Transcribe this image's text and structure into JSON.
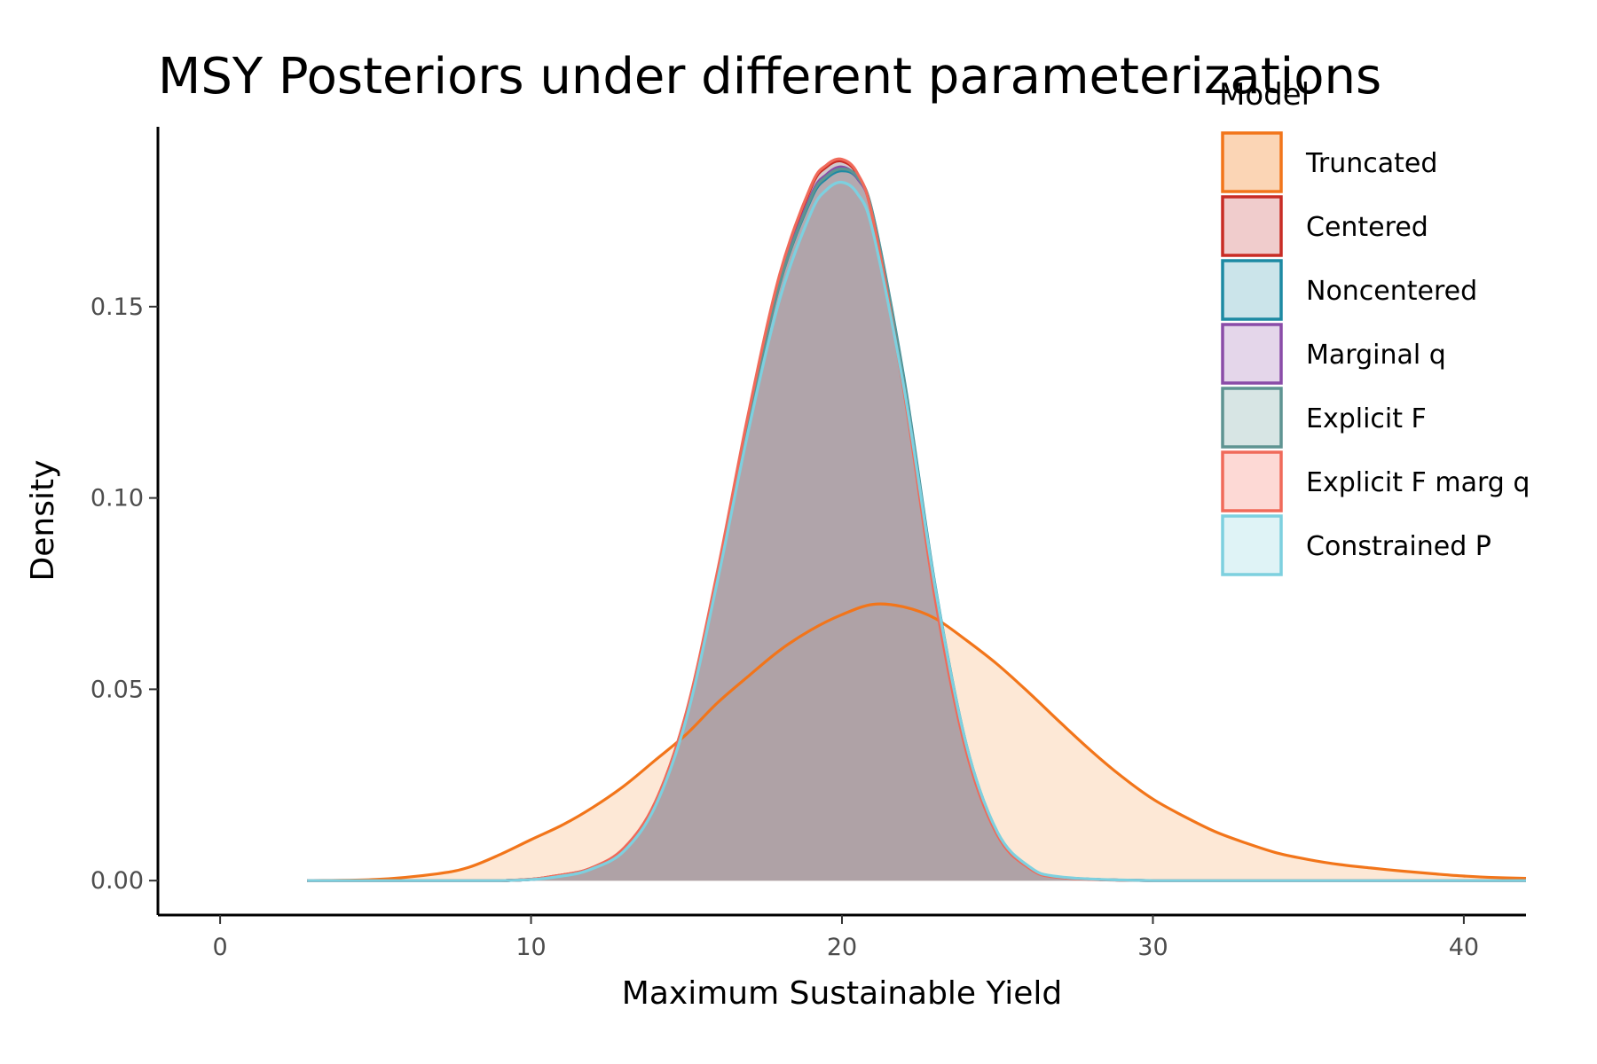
{
  "chart_data": {
    "type": "area",
    "title": "MSY Posteriors under different parameterizations",
    "xlabel": "Maximum Sustainable Yield",
    "ylabel": "Density",
    "xlim": [
      -2,
      42
    ],
    "ylim": [
      -0.009,
      0.197
    ],
    "x_ticks": [
      0,
      10,
      20,
      30,
      40
    ],
    "x_tick_labels": [
      "0",
      "10",
      "20",
      "30",
      "40"
    ],
    "y_ticks": [
      0.0,
      0.05,
      0.1,
      0.15
    ],
    "y_tick_labels": [
      "0.00",
      "0.05",
      "0.10",
      "0.15"
    ],
    "grid": false,
    "legend": {
      "title": "Model",
      "position": "top-right"
    },
    "series": [
      {
        "name": "Truncated",
        "line_color": "#f2751a",
        "fill_color": "#fbd5b5",
        "x": [
          2.8,
          5,
          7,
          8,
          9,
          10,
          11,
          12,
          13,
          14,
          15,
          16,
          17,
          18,
          19,
          20,
          21,
          22,
          23,
          24,
          25,
          26,
          27,
          28,
          29,
          30,
          31,
          32,
          33,
          34,
          35,
          36,
          37,
          38,
          39,
          40,
          41,
          42
        ],
        "y": [
          0.0,
          0.0003,
          0.0018,
          0.0035,
          0.0068,
          0.0107,
          0.0145,
          0.0192,
          0.0248,
          0.0315,
          0.0383,
          0.0465,
          0.0535,
          0.0602,
          0.0655,
          0.0695,
          0.0722,
          0.0715,
          0.0685,
          0.0628,
          0.0565,
          0.0492,
          0.0415,
          0.034,
          0.0272,
          0.0213,
          0.0168,
          0.0128,
          0.0098,
          0.0072,
          0.0055,
          0.0042,
          0.0033,
          0.0025,
          0.0018,
          0.0012,
          0.0008,
          0.0006
        ]
      },
      {
        "name": "Centered",
        "line_color": "#c82c25",
        "fill_color": "#f0cccc",
        "x": [
          2.8,
          9,
          11,
          12,
          13,
          14,
          15,
          16,
          17,
          18,
          19,
          19.5,
          20,
          20.5,
          21,
          22,
          23,
          24,
          25,
          26,
          27,
          30,
          35,
          42
        ],
        "y": [
          0.0,
          0.0,
          0.0015,
          0.0035,
          0.0085,
          0.0205,
          0.044,
          0.0805,
          0.122,
          0.158,
          0.181,
          0.1865,
          0.188,
          0.1845,
          0.173,
          0.128,
          0.074,
          0.034,
          0.012,
          0.0035,
          0.0009,
          0.0,
          0.0,
          0.0
        ]
      },
      {
        "name": "Noncentered",
        "line_color": "#1d8aa3",
        "fill_color": "#cbe4ea",
        "x": [
          2.8,
          9,
          11,
          12,
          13,
          14,
          15,
          16,
          17,
          18,
          19,
          19.5,
          20,
          20.5,
          21,
          22,
          23,
          24,
          25,
          26,
          27,
          30,
          35,
          42
        ],
        "y": [
          0.0,
          0.0,
          0.0014,
          0.0034,
          0.0082,
          0.0198,
          0.0428,
          0.0795,
          0.12,
          0.156,
          0.178,
          0.1835,
          0.1855,
          0.1835,
          0.174,
          0.131,
          0.077,
          0.0355,
          0.0126,
          0.0037,
          0.0009,
          0.0,
          0.0,
          0.0
        ]
      },
      {
        "name": "Marginal q",
        "line_color": "#8a4ca8",
        "fill_color": "#e4d6ea",
        "x": [
          2.8,
          9,
          11,
          12,
          13,
          14,
          15,
          16,
          17,
          18,
          19,
          19.5,
          20,
          20.5,
          21,
          22,
          23,
          24,
          25,
          26,
          27,
          30,
          35,
          42
        ],
        "y": [
          0.0,
          0.0,
          0.0014,
          0.0034,
          0.0083,
          0.02,
          0.0432,
          0.0798,
          0.1205,
          0.1565,
          0.179,
          0.1845,
          0.1865,
          0.1835,
          0.1735,
          0.13,
          0.0762,
          0.035,
          0.0123,
          0.0036,
          0.0009,
          0.0,
          0.0,
          0.0
        ]
      },
      {
        "name": "Explicit F",
        "line_color": "#5e9492",
        "fill_color": "#d7e5e4",
        "x": [
          2.8,
          9,
          11,
          12,
          13,
          14,
          15,
          16,
          17,
          18,
          19,
          19.5,
          20,
          20.5,
          21,
          22,
          23,
          24,
          25,
          26,
          27,
          30,
          35,
          42
        ],
        "y": [
          0.0,
          0.0,
          0.0014,
          0.0034,
          0.0082,
          0.0199,
          0.043,
          0.0796,
          0.1202,
          0.1562,
          0.1785,
          0.184,
          0.186,
          0.1838,
          0.1738,
          0.1305,
          0.0765,
          0.0352,
          0.0124,
          0.0036,
          0.0009,
          0.0,
          0.0,
          0.0
        ]
      },
      {
        "name": "Explicit F marg q",
        "line_color": "#f06a5a",
        "fill_color": "#fdd9d5",
        "x": [
          2.8,
          9,
          11,
          12,
          13,
          14,
          15,
          16,
          17,
          18,
          19,
          19.5,
          20,
          20.5,
          21,
          22,
          23,
          24,
          25,
          26,
          27,
          30,
          35,
          42
        ],
        "y": [
          0.0,
          0.0,
          0.0015,
          0.0035,
          0.0086,
          0.0206,
          0.0442,
          0.081,
          0.1225,
          0.1585,
          0.1815,
          0.187,
          0.1885,
          0.1848,
          0.1728,
          0.1275,
          0.0735,
          0.0337,
          0.0119,
          0.0034,
          0.0008,
          0.0,
          0.0,
          0.0
        ]
      },
      {
        "name": "Constrained P",
        "line_color": "#7dd0df",
        "fill_color": "#dff3f6",
        "x": [
          2.8,
          9,
          11,
          12,
          13,
          14,
          15,
          16,
          17,
          18,
          19,
          19.5,
          20,
          20.5,
          21,
          22,
          23,
          24,
          25,
          26,
          27,
          30,
          35,
          42
        ],
        "y": [
          0.0,
          0.0,
          0.0012,
          0.0032,
          0.0078,
          0.0195,
          0.0425,
          0.0785,
          0.118,
          0.152,
          0.1745,
          0.1805,
          0.1825,
          0.1795,
          0.1695,
          0.1285,
          0.0765,
          0.0355,
          0.0127,
          0.0038,
          0.001,
          0.0,
          0.0,
          0.0
        ]
      }
    ],
    "overlap_fill_color": "#a89ca2"
  }
}
